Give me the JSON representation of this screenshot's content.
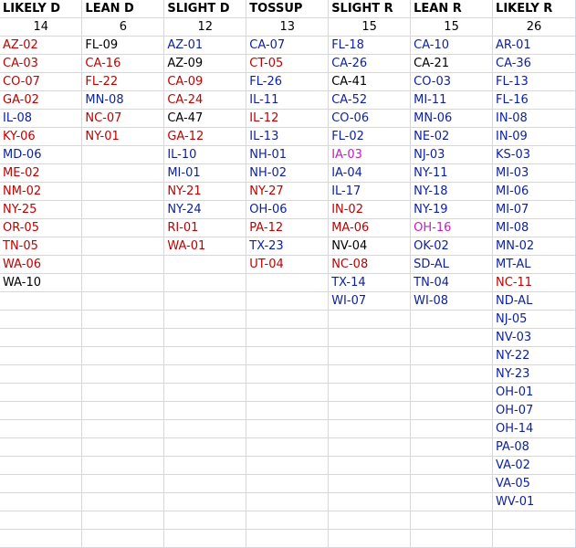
{
  "colors": {
    "red": "#c00000",
    "blue": "#0b1fa6",
    "black": "#000000",
    "magenta": "#c020c0",
    "gridline": "#cfd8e8"
  },
  "rows_total": 28,
  "columns": [
    {
      "header": "LIKELY D",
      "count": "14",
      "cells": [
        {
          "text": "AZ-02",
          "color": "red"
        },
        {
          "text": "CA-03",
          "color": "red"
        },
        {
          "text": "CO-07",
          "color": "red"
        },
        {
          "text": "GA-02",
          "color": "red"
        },
        {
          "text": "IL-08",
          "color": "blue"
        },
        {
          "text": "KY-06",
          "color": "red"
        },
        {
          "text": "MD-06",
          "color": "blue"
        },
        {
          "text": "ME-02",
          "color": "red"
        },
        {
          "text": "NM-02",
          "color": "red"
        },
        {
          "text": "NY-25",
          "color": "red"
        },
        {
          "text": "OR-05",
          "color": "red"
        },
        {
          "text": "TN-05",
          "color": "red"
        },
        {
          "text": "WA-06",
          "color": "red"
        },
        {
          "text": "WA-10",
          "color": "black"
        }
      ]
    },
    {
      "header": "LEAN D",
      "count": "6",
      "cells": [
        {
          "text": "FL-09",
          "color": "black"
        },
        {
          "text": "CA-16",
          "color": "red"
        },
        {
          "text": "FL-22",
          "color": "red"
        },
        {
          "text": "MN-08",
          "color": "blue"
        },
        {
          "text": "NC-07",
          "color": "red"
        },
        {
          "text": "NY-01",
          "color": "red"
        }
      ]
    },
    {
      "header": "SLIGHT D",
      "count": "12",
      "cells": [
        {
          "text": "AZ-01",
          "color": "blue"
        },
        {
          "text": "AZ-09",
          "color": "black"
        },
        {
          "text": "CA-09",
          "color": "red"
        },
        {
          "text": "CA-24",
          "color": "red"
        },
        {
          "text": "CA-47",
          "color": "black"
        },
        {
          "text": "GA-12",
          "color": "red"
        },
        {
          "text": "IL-10",
          "color": "blue"
        },
        {
          "text": "MI-01",
          "color": "blue"
        },
        {
          "text": "NY-21",
          "color": "red"
        },
        {
          "text": "NY-24",
          "color": "blue"
        },
        {
          "text": "RI-01",
          "color": "red"
        },
        {
          "text": "WA-01",
          "color": "red"
        }
      ]
    },
    {
      "header": "TOSSUP",
      "count": "13",
      "cells": [
        {
          "text": "CA-07",
          "color": "blue"
        },
        {
          "text": "CT-05",
          "color": "red"
        },
        {
          "text": "FL-26",
          "color": "blue"
        },
        {
          "text": "IL-11",
          "color": "blue"
        },
        {
          "text": "IL-12",
          "color": "red"
        },
        {
          "text": "IL-13",
          "color": "blue"
        },
        {
          "text": "NH-01",
          "color": "blue"
        },
        {
          "text": "NH-02",
          "color": "blue"
        },
        {
          "text": "NY-27",
          "color": "red"
        },
        {
          "text": "OH-06",
          "color": "blue"
        },
        {
          "text": "PA-12",
          "color": "red"
        },
        {
          "text": "TX-23",
          "color": "blue"
        },
        {
          "text": "UT-04",
          "color": "red"
        }
      ]
    },
    {
      "header": "SLIGHT R",
      "count": "15",
      "cells": [
        {
          "text": "FL-18",
          "color": "blue"
        },
        {
          "text": "CA-26",
          "color": "blue"
        },
        {
          "text": "CA-41",
          "color": "black"
        },
        {
          "text": "CA-52",
          "color": "blue"
        },
        {
          "text": "CO-06",
          "color": "blue"
        },
        {
          "text": "FL-02",
          "color": "blue"
        },
        {
          "text": "IA-03",
          "color": "magenta"
        },
        {
          "text": "IA-04",
          "color": "blue"
        },
        {
          "text": "IL-17",
          "color": "blue"
        },
        {
          "text": "IN-02",
          "color": "red"
        },
        {
          "text": "MA-06",
          "color": "red"
        },
        {
          "text": "NV-04",
          "color": "black"
        },
        {
          "text": "NC-08",
          "color": "red"
        },
        {
          "text": "TX-14",
          "color": "blue"
        },
        {
          "text": "WI-07",
          "color": "blue"
        }
      ]
    },
    {
      "header": "LEAN R",
      "count": "15",
      "cells": [
        {
          "text": "CA-10",
          "color": "blue"
        },
        {
          "text": "CA-21",
          "color": "black"
        },
        {
          "text": "CO-03",
          "color": "blue"
        },
        {
          "text": "MI-11",
          "color": "blue"
        },
        {
          "text": "MN-06",
          "color": "blue"
        },
        {
          "text": "NE-02",
          "color": "blue"
        },
        {
          "text": "NJ-03",
          "color": "blue"
        },
        {
          "text": "NY-11",
          "color": "blue"
        },
        {
          "text": "NY-18",
          "color": "blue"
        },
        {
          "text": "NY-19",
          "color": "blue"
        },
        {
          "text": "OH-16",
          "color": "magenta"
        },
        {
          "text": "OK-02",
          "color": "blue"
        },
        {
          "text": "SD-AL",
          "color": "blue"
        },
        {
          "text": "TN-04",
          "color": "blue"
        },
        {
          "text": "WI-08",
          "color": "blue"
        }
      ]
    },
    {
      "header": "LIKELY R",
      "count": "26",
      "cells": [
        {
          "text": "AR-01",
          "color": "blue"
        },
        {
          "text": "CA-36",
          "color": "blue"
        },
        {
          "text": "FL-13",
          "color": "blue"
        },
        {
          "text": "FL-16",
          "color": "blue"
        },
        {
          "text": "IN-08",
          "color": "blue"
        },
        {
          "text": "IN-09",
          "color": "blue"
        },
        {
          "text": "KS-03",
          "color": "blue"
        },
        {
          "text": "MI-03",
          "color": "blue"
        },
        {
          "text": "MI-06",
          "color": "blue"
        },
        {
          "text": "MI-07",
          "color": "blue"
        },
        {
          "text": "MI-08",
          "color": "blue"
        },
        {
          "text": "MN-02",
          "color": "blue"
        },
        {
          "text": "MT-AL",
          "color": "blue"
        },
        {
          "text": "NC-11",
          "color": "red"
        },
        {
          "text": "ND-AL",
          "color": "blue"
        },
        {
          "text": "NJ-05",
          "color": "blue"
        },
        {
          "text": "NV-03",
          "color": "blue"
        },
        {
          "text": "NY-22",
          "color": "blue"
        },
        {
          "text": "NY-23",
          "color": "blue"
        },
        {
          "text": "OH-01",
          "color": "blue"
        },
        {
          "text": "OH-07",
          "color": "blue"
        },
        {
          "text": "OH-14",
          "color": "blue"
        },
        {
          "text": "PA-08",
          "color": "blue"
        },
        {
          "text": "VA-02",
          "color": "blue"
        },
        {
          "text": "VA-05",
          "color": "blue"
        },
        {
          "text": "WV-01",
          "color": "blue"
        }
      ]
    }
  ]
}
